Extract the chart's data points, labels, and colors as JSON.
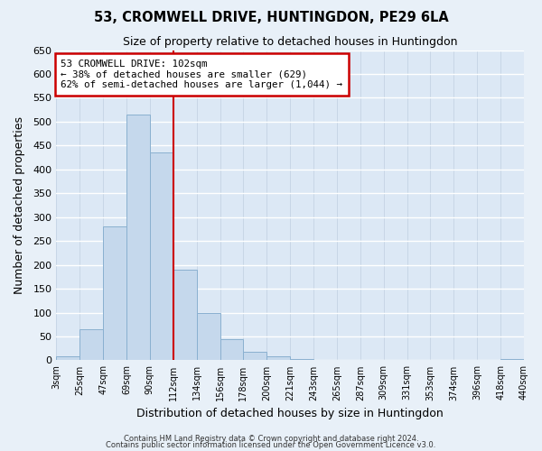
{
  "title": "53, CROMWELL DRIVE, HUNTINGDON, PE29 6LA",
  "subtitle": "Size of property relative to detached houses in Huntingdon",
  "xlabel": "Distribution of detached houses by size in Huntingdon",
  "ylabel": "Number of detached properties",
  "bar_labels": [
    "3sqm",
    "25sqm",
    "47sqm",
    "69sqm",
    "90sqm",
    "112sqm",
    "134sqm",
    "156sqm",
    "178sqm",
    "200sqm",
    "221sqm",
    "243sqm",
    "265sqm",
    "287sqm",
    "309sqm",
    "331sqm",
    "353sqm",
    "374sqm",
    "396sqm",
    "418sqm",
    "440sqm"
  ],
  "bar_values": [
    8,
    65,
    280,
    515,
    435,
    190,
    100,
    45,
    18,
    8,
    3,
    1,
    1,
    1,
    0,
    0,
    0,
    0,
    0,
    3
  ],
  "bar_color": "#c5d8ec",
  "bar_edge_color": "#8ab0d0",
  "vline_color": "#cc0000",
  "annotation_lines": [
    "53 CROMWELL DRIVE: 102sqm",
    "← 38% of detached houses are smaller (629)",
    "62% of semi-detached houses are larger (1,044) →"
  ],
  "ylim": [
    0,
    650
  ],
  "yticks": [
    0,
    50,
    100,
    150,
    200,
    250,
    300,
    350,
    400,
    450,
    500,
    550,
    600,
    650
  ],
  "footer_lines": [
    "Contains HM Land Registry data © Crown copyright and database right 2024.",
    "Contains public sector information licensed under the Open Government Licence v3.0."
  ],
  "bg_color": "#e8f0f8",
  "plot_bg_color": "#dce8f5",
  "grid_color": "#c0cfe0"
}
